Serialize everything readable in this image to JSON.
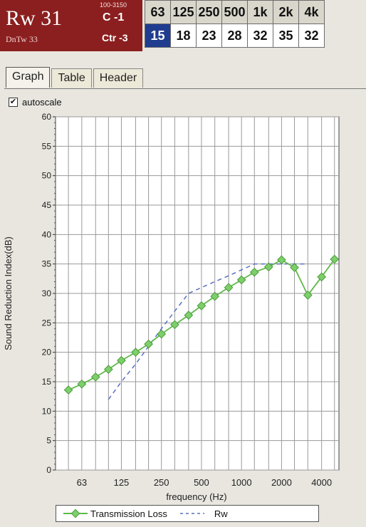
{
  "rating": {
    "rw_label": "Rw 31",
    "dntw_label": "DnTw 33",
    "range_label": "100-3150",
    "c_label": "C -1",
    "ctr_label": "Ctr -3"
  },
  "bands": {
    "headers": [
      "63",
      "125",
      "250",
      "500",
      "1k",
      "2k",
      "4k"
    ],
    "values": [
      "15",
      "18",
      "23",
      "28",
      "32",
      "35",
      "32"
    ]
  },
  "tabs": [
    "Graph",
    "Table",
    "Header"
  ],
  "autoscale": {
    "label": "autoscale",
    "checked": true,
    "check_mark": "✔"
  },
  "colors": {
    "header_bg": "#8b1f1f",
    "selected_cell": "#1f3c8f",
    "series_tl": "#5fb84a",
    "series_rw": "#5a6fc2"
  },
  "chart_data": {
    "type": "line",
    "xlabel": "frequency (Hz)",
    "ylabel": "Sound Reduction Index(dB)",
    "ylim": [
      0,
      60
    ],
    "yticks": [
      0,
      5,
      10,
      15,
      20,
      25,
      30,
      35,
      40,
      45,
      50,
      55,
      60
    ],
    "xtick_labels": [
      "63",
      "125",
      "250",
      "500",
      "1000",
      "2000",
      "4000"
    ],
    "log_x": true,
    "grid": true,
    "legend_position": "bottom",
    "series": [
      {
        "name": "Transmission Loss",
        "x": [
          50,
          63,
          80,
          100,
          125,
          160,
          200,
          250,
          315,
          400,
          500,
          630,
          800,
          1000,
          1250,
          1600,
          2000,
          2500,
          3150,
          4000,
          5000
        ],
        "y": [
          13.6,
          14.6,
          15.8,
          17.1,
          18.6,
          20.0,
          21.4,
          23.1,
          24.7,
          26.3,
          27.9,
          29.5,
          31.0,
          32.3,
          33.6,
          34.5,
          35.7,
          34.4,
          29.7,
          32.8,
          35.8
        ]
      },
      {
        "name": "Rw",
        "x": [
          100,
          125,
          160,
          200,
          250,
          315,
          400,
          500,
          630,
          800,
          1000,
          1250,
          1600,
          2000,
          2500,
          3150
        ],
        "y": [
          12,
          15,
          18,
          21,
          24,
          27,
          30,
          31,
          32,
          33,
          34,
          35,
          35,
          35,
          35,
          35
        ]
      }
    ]
  }
}
